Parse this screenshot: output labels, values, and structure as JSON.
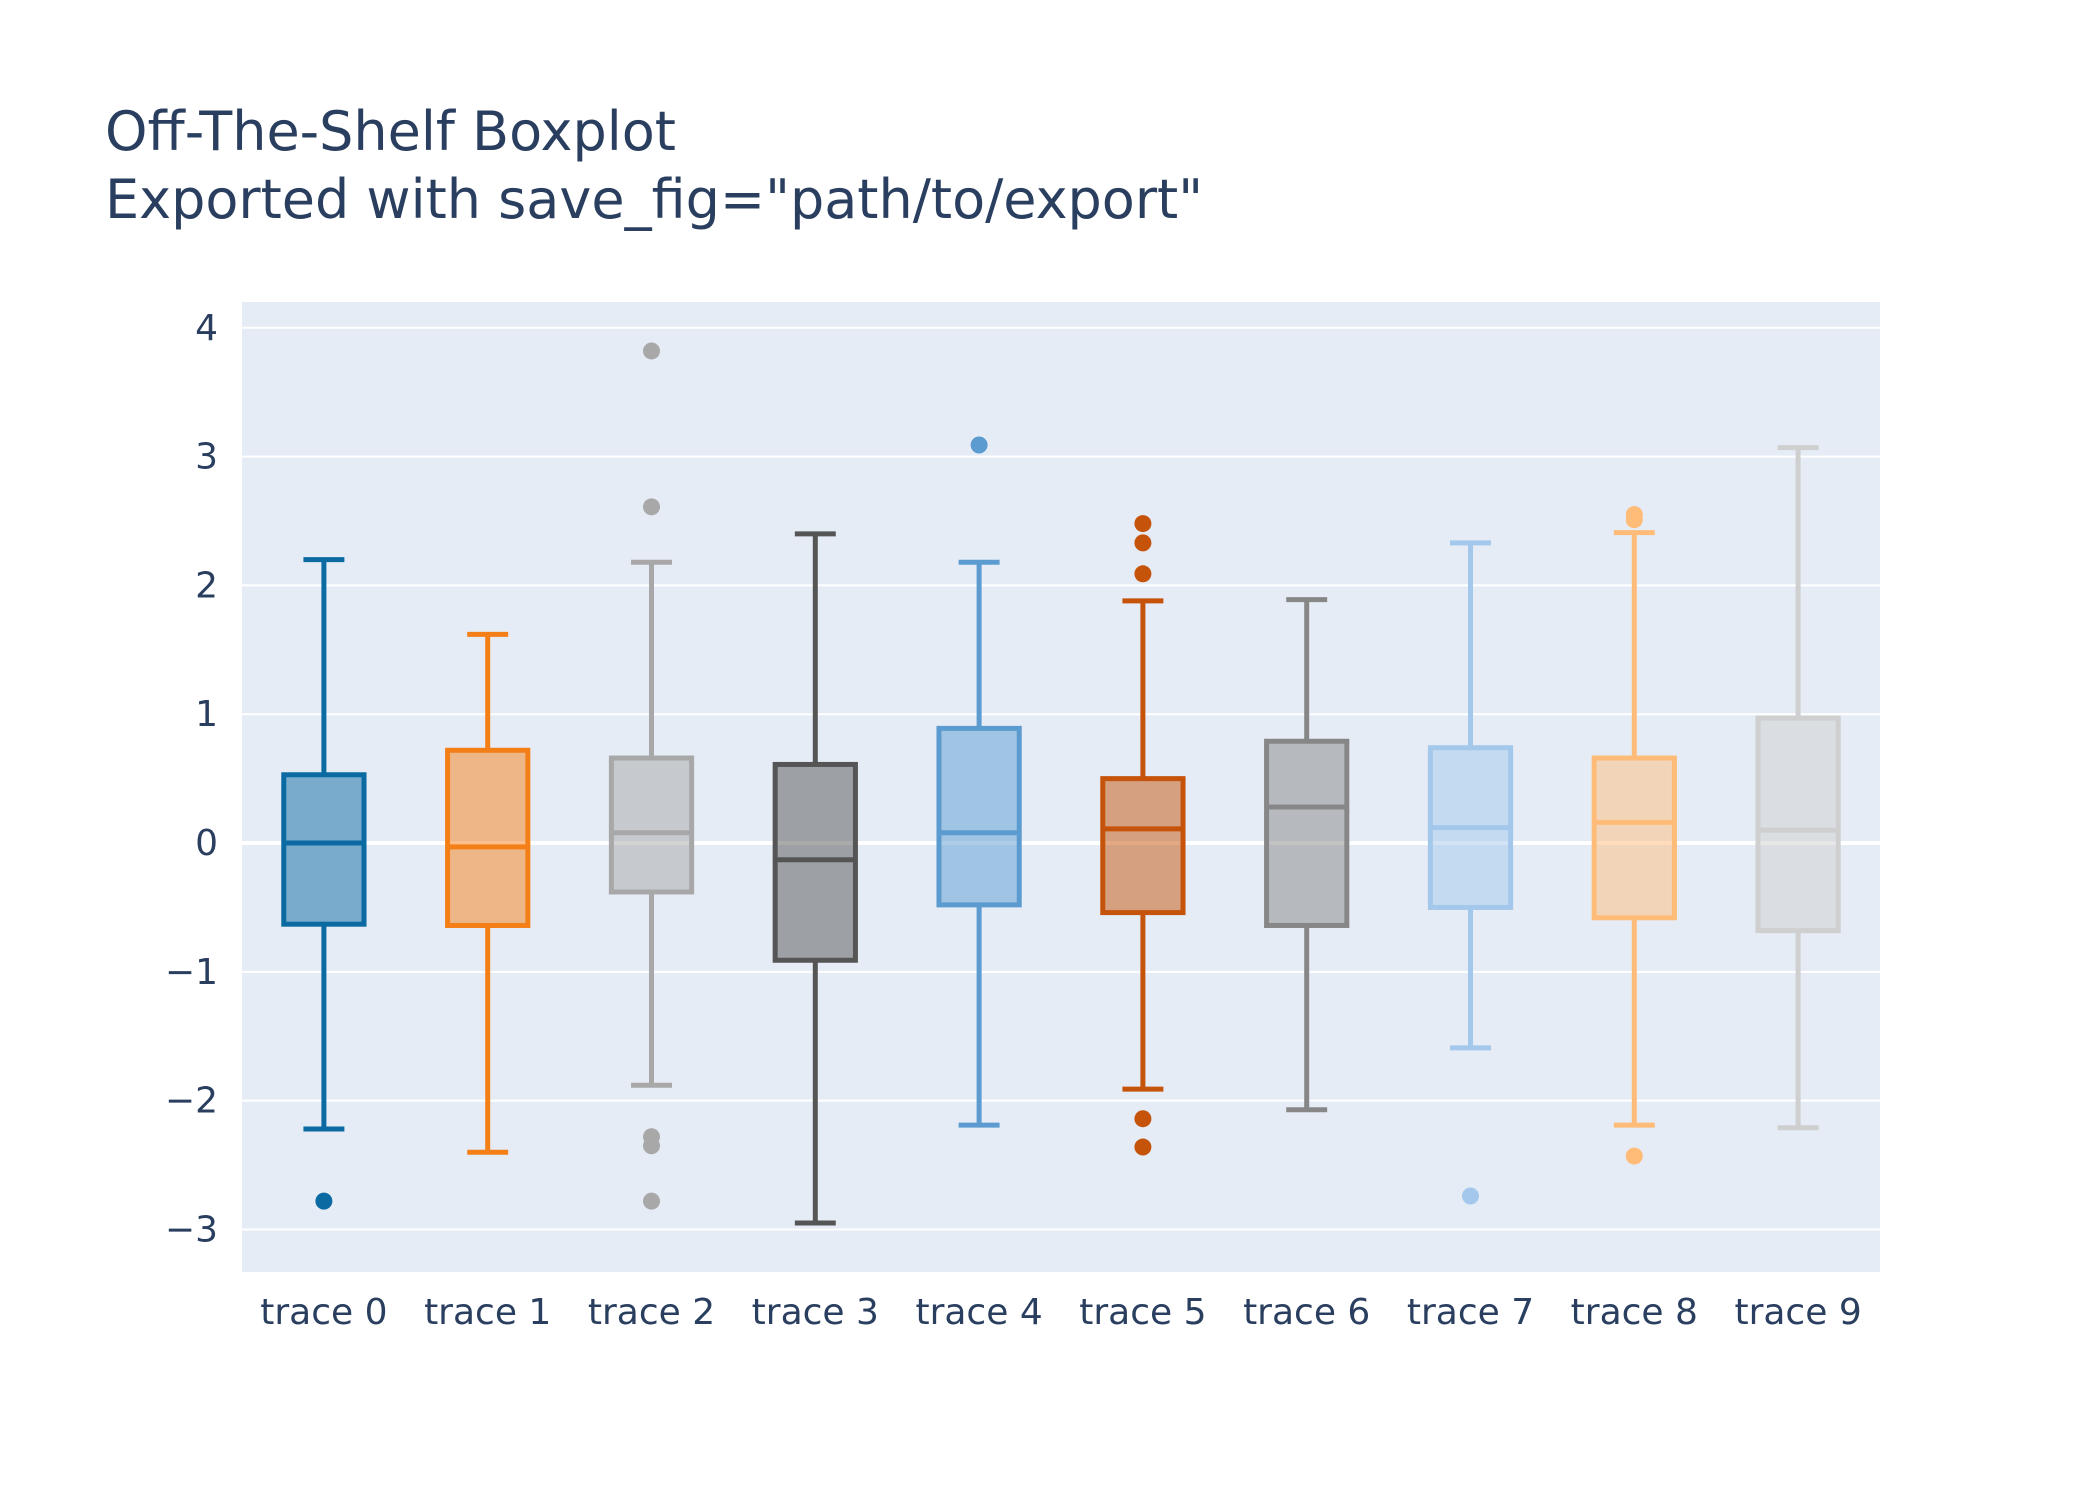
{
  "chart_data": {
    "type": "box",
    "title": "Off-The-Shelf Boxplot",
    "subtitle": "Exported with save_fig=\"path/to/export\"",
    "xlabel": "",
    "ylabel": "",
    "ylim": [
      -3.33,
      4.2
    ],
    "yticks": [
      -3,
      -2,
      -1,
      0,
      1,
      2,
      3,
      4
    ],
    "ytick_labels": [
      "−3",
      "−2",
      "−1",
      "0",
      "1",
      "2",
      "3",
      "4"
    ],
    "grid": true,
    "legend": "none",
    "plot_bgcolor": "#e5ecf6",
    "gridcolor": "#ffffff",
    "categories": [
      "trace 0",
      "trace 1",
      "trace 2",
      "trace 3",
      "trace 4",
      "trace 5",
      "trace 6",
      "trace 7",
      "trace 8",
      "trace 9"
    ],
    "series": [
      {
        "color": "#0b6aa2",
        "lowerfence": -2.22,
        "q1": -0.63,
        "median": 0.0,
        "q3": 0.53,
        "upperfence": 2.2,
        "outliers": [
          -2.78
        ]
      },
      {
        "color": "#f57f17",
        "lowerfence": -2.4,
        "q1": -0.64,
        "median": -0.03,
        "q3": 0.72,
        "upperfence": 1.62,
        "outliers": []
      },
      {
        "color": "#a8a8a8",
        "lowerfence": -1.88,
        "q1": -0.38,
        "median": 0.08,
        "q3": 0.66,
        "upperfence": 2.18,
        "outliers": [
          3.82,
          2.61,
          -2.28,
          -2.35,
          -2.78
        ]
      },
      {
        "color": "#555555",
        "lowerfence": -2.95,
        "q1": -0.91,
        "median": -0.13,
        "q3": 0.61,
        "upperfence": 2.4,
        "outliers": []
      },
      {
        "color": "#5b9bd0",
        "lowerfence": -2.19,
        "q1": -0.48,
        "median": 0.08,
        "q3": 0.89,
        "upperfence": 2.18,
        "outliers": [
          3.09
        ]
      },
      {
        "color": "#c6530a",
        "lowerfence": -1.91,
        "q1": -0.54,
        "median": 0.11,
        "q3": 0.5,
        "upperfence": 1.88,
        "outliers": [
          2.48,
          2.33,
          2.09,
          -2.14,
          -2.36
        ]
      },
      {
        "color": "#878787",
        "lowerfence": -2.07,
        "q1": -0.64,
        "median": 0.28,
        "q3": 0.79,
        "upperfence": 1.89,
        "outliers": []
      },
      {
        "color": "#a3c8ec",
        "lowerfence": -1.59,
        "q1": -0.5,
        "median": 0.12,
        "q3": 0.74,
        "upperfence": 2.33,
        "outliers": [
          -2.74
        ]
      },
      {
        "color": "#ffbc79",
        "lowerfence": -2.19,
        "q1": -0.58,
        "median": 0.16,
        "q3": 0.66,
        "upperfence": 2.41,
        "outliers": [
          2.55,
          2.51,
          -2.43
        ]
      },
      {
        "color": "#cfcfcf",
        "lowerfence": -2.21,
        "q1": -0.68,
        "median": 0.1,
        "q3": 0.97,
        "upperfence": 3.07,
        "outliers": []
      }
    ]
  }
}
